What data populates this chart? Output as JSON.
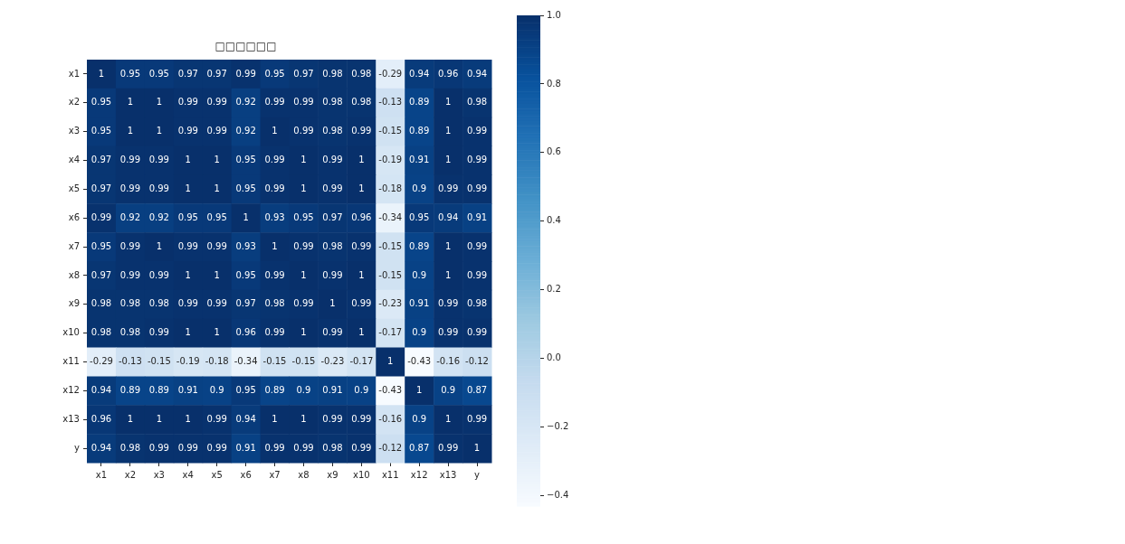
{
  "chart_data": {
    "type": "heatmap",
    "title": "□□□□□□",
    "categories": [
      "x1",
      "x2",
      "x3",
      "x4",
      "x5",
      "x6",
      "x7",
      "x8",
      "x9",
      "x10",
      "x11",
      "x12",
      "x13",
      "y"
    ],
    "y_categories": [
      "x1",
      "x2",
      "x3",
      "x4",
      "x5",
      "x6",
      "x7",
      "x8",
      "x9",
      "x10",
      "x11",
      "x12",
      "x13",
      "y"
    ],
    "cells": [
      [
        1,
        0.95,
        0.95,
        0.97,
        0.97,
        0.99,
        0.95,
        0.97,
        0.98,
        0.98,
        -0.29,
        0.94,
        0.96,
        0.94
      ],
      [
        0.95,
        1,
        1,
        0.99,
        0.99,
        0.92,
        0.99,
        0.99,
        0.98,
        0.98,
        -0.13,
        0.89,
        1,
        0.98
      ],
      [
        0.95,
        1,
        1,
        0.99,
        0.99,
        0.92,
        1,
        0.99,
        0.98,
        0.99,
        -0.15,
        0.89,
        1,
        0.99
      ],
      [
        0.97,
        0.99,
        0.99,
        1,
        1,
        0.95,
        0.99,
        1,
        0.99,
        1,
        -0.19,
        0.91,
        1,
        0.99
      ],
      [
        0.97,
        0.99,
        0.99,
        1,
        1,
        0.95,
        0.99,
        1,
        0.99,
        1,
        -0.18,
        0.9,
        0.99,
        0.99
      ],
      [
        0.99,
        0.92,
        0.92,
        0.95,
        0.95,
        1,
        0.93,
        0.95,
        0.97,
        0.96,
        -0.34,
        0.95,
        0.94,
        0.91
      ],
      [
        0.95,
        0.99,
        1,
        0.99,
        0.99,
        0.93,
        1,
        0.99,
        0.98,
        0.99,
        -0.15,
        0.89,
        1,
        0.99
      ],
      [
        0.97,
        0.99,
        0.99,
        1,
        1,
        0.95,
        0.99,
        1,
        0.99,
        1,
        -0.15,
        0.9,
        1,
        0.99
      ],
      [
        0.98,
        0.98,
        0.98,
        0.99,
        0.99,
        0.97,
        0.98,
        0.99,
        1,
        0.99,
        -0.23,
        0.91,
        0.99,
        0.98
      ],
      [
        0.98,
        0.98,
        0.99,
        1,
        1,
        0.96,
        0.99,
        1,
        0.99,
        1,
        -0.17,
        0.9,
        0.99,
        0.99
      ],
      [
        -0.29,
        -0.13,
        -0.15,
        -0.19,
        -0.18,
        -0.34,
        -0.15,
        -0.15,
        -0.23,
        -0.17,
        1,
        -0.43,
        -0.16,
        -0.12
      ],
      [
        0.94,
        0.89,
        0.89,
        0.91,
        0.9,
        0.95,
        0.89,
        0.9,
        0.91,
        0.9,
        -0.43,
        1,
        0.9,
        0.87
      ],
      [
        0.96,
        1,
        1,
        1,
        0.99,
        0.94,
        1,
        1,
        0.99,
        0.99,
        -0.16,
        0.9,
        1,
        0.99
      ],
      [
        0.94,
        0.98,
        0.99,
        0.99,
        0.99,
        0.91,
        0.99,
        0.99,
        0.98,
        0.99,
        -0.12,
        0.87,
        0.99,
        1
      ]
    ],
    "data_labels": true,
    "clim": [
      -0.43,
      1
    ],
    "cticks": [
      {
        "value": -0.4,
        "label": "−0.4"
      },
      {
        "value": -0.2,
        "label": "−0.2"
      },
      {
        "value": 0,
        "label": "0.0"
      },
      {
        "value": 0.2,
        "label": "0.2"
      },
      {
        "value": 0.4,
        "label": "0.4"
      },
      {
        "value": 0.6,
        "label": "0.6"
      },
      {
        "value": 0.8,
        "label": "0.8"
      },
      {
        "value": 1,
        "label": "1.0"
      }
    ]
  }
}
